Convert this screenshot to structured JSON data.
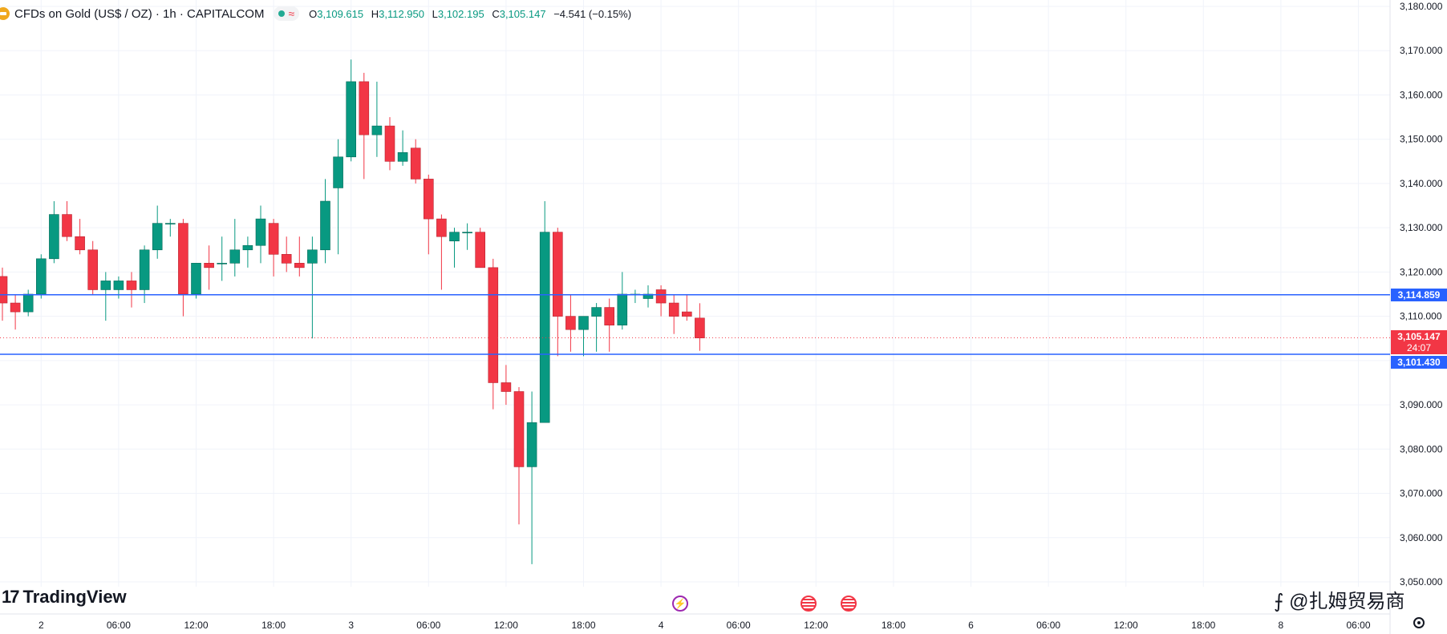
{
  "header": {
    "title": "CFDs on Gold (US$ / OZ) · 1h · CAPITALCOM",
    "ohlc": {
      "o_label": "O",
      "o": "3,109.615",
      "h_label": "H",
      "h": "3,112.950",
      "l_label": "L",
      "l": "3,102.195",
      "c_label": "C",
      "c": "3,105.147",
      "change": "−4.541 (−0.15%)"
    }
  },
  "price_tags": {
    "upper_line": "3,114.859",
    "current": "3,105.147",
    "countdown": "24:07",
    "lower_line": "3,101.430"
  },
  "branding": {
    "logo_text": "TradingView",
    "watermark": "⨍ @扎姆贸易商"
  },
  "colors": {
    "up": "#089981",
    "down": "#f23645",
    "line": "#2962ff",
    "grid": "#f0f3fa"
  },
  "chart_data": {
    "type": "candlestick",
    "interval": "1h",
    "ylim": [
      3050,
      3180
    ],
    "y_ticks": [
      3050,
      3060,
      3070,
      3080,
      3090,
      3100,
      3110,
      3120,
      3130,
      3140,
      3150,
      3160,
      3170,
      3180
    ],
    "y_tick_labels": [
      "3,050.000",
      "3,060.000",
      "3,070.000",
      "3,080.000",
      "3,090.000",
      "3,100.000",
      "3,110.000",
      "3,120.000",
      "3,130.000",
      "3,140.000",
      "3,150.000",
      "3,160.000",
      "3,170.000",
      "3,180.000"
    ],
    "x_tick_labels": [
      "2",
      "06:00",
      "12:00",
      "18:00",
      "3",
      "06:00",
      "12:00",
      "18:00",
      "4",
      "06:00",
      "12:00",
      "18:00",
      "6",
      "06:00",
      "12:00",
      "18:00",
      "8",
      "06:00"
    ],
    "horizontal_lines": [
      3114.859,
      3101.43
    ],
    "current_price": 3105.147,
    "candles": [
      {
        "o": 3119.0,
        "h": 3121.0,
        "l": 3109.0,
        "c": 3113.0
      },
      {
        "o": 3113.0,
        "h": 3115.0,
        "l": 3107.0,
        "c": 3111.0
      },
      {
        "o": 3111.0,
        "h": 3116.0,
        "l": 3110.0,
        "c": 3115.0
      },
      {
        "o": 3115.0,
        "h": 3124.0,
        "l": 3114.0,
        "c": 3123.0
      },
      {
        "o": 3123.0,
        "h": 3136.0,
        "l": 3122.0,
        "c": 3133.0
      },
      {
        "o": 3133.0,
        "h": 3136.0,
        "l": 3127.0,
        "c": 3128.0
      },
      {
        "o": 3128.0,
        "h": 3132.0,
        "l": 3124.0,
        "c": 3125.0
      },
      {
        "o": 3125.0,
        "h": 3127.0,
        "l": 3115.0,
        "c": 3116.0
      },
      {
        "o": 3116.0,
        "h": 3120.0,
        "l": 3109.0,
        "c": 3118.0
      },
      {
        "o": 3116.0,
        "h": 3119.0,
        "l": 3114.0,
        "c": 3118.0
      },
      {
        "o": 3118.0,
        "h": 3120.0,
        "l": 3112.0,
        "c": 3116.0
      },
      {
        "o": 3116.0,
        "h": 3126.0,
        "l": 3113.0,
        "c": 3125.0
      },
      {
        "o": 3125.0,
        "h": 3135.0,
        "l": 3123.0,
        "c": 3131.0
      },
      {
        "o": 3131.0,
        "h": 3132.0,
        "l": 3128.0,
        "c": 3131.0
      },
      {
        "o": 3131.0,
        "h": 3132.0,
        "l": 3110.0,
        "c": 3115.0
      },
      {
        "o": 3115.0,
        "h": 3122.0,
        "l": 3114.0,
        "c": 3122.0
      },
      {
        "o": 3122.0,
        "h": 3126.0,
        "l": 3116.0,
        "c": 3121.0
      },
      {
        "o": 3122.0,
        "h": 3128.0,
        "l": 3118.0,
        "c": 3122.0
      },
      {
        "o": 3122.0,
        "h": 3132.0,
        "l": 3119.0,
        "c": 3125.0
      },
      {
        "o": 3125.0,
        "h": 3128.0,
        "l": 3121.0,
        "c": 3126.0
      },
      {
        "o": 3126.0,
        "h": 3135.0,
        "l": 3122.0,
        "c": 3132.0
      },
      {
        "o": 3131.0,
        "h": 3132.0,
        "l": 3119.0,
        "c": 3124.0
      },
      {
        "o": 3124.0,
        "h": 3128.0,
        "l": 3120.0,
        "c": 3122.0
      },
      {
        "o": 3122.0,
        "h": 3128.0,
        "l": 3119.0,
        "c": 3121.0
      },
      {
        "o": 3122.0,
        "h": 3128.0,
        "l": 3105.0,
        "c": 3125.0
      },
      {
        "o": 3125.0,
        "h": 3141.0,
        "l": 3122.0,
        "c": 3136.0
      },
      {
        "o": 3139.0,
        "h": 3150.0,
        "l": 3124.0,
        "c": 3146.0
      },
      {
        "o": 3146.0,
        "h": 3168.0,
        "l": 3145.0,
        "c": 3163.0
      },
      {
        "o": 3163.0,
        "h": 3165.0,
        "l": 3141.0,
        "c": 3151.0
      },
      {
        "o": 3151.0,
        "h": 3163.0,
        "l": 3146.0,
        "c": 3153.0
      },
      {
        "o": 3153.0,
        "h": 3155.0,
        "l": 3143.0,
        "c": 3145.0
      },
      {
        "o": 3145.0,
        "h": 3152.0,
        "l": 3144.0,
        "c": 3147.0
      },
      {
        "o": 3148.0,
        "h": 3150.0,
        "l": 3140.0,
        "c": 3141.0
      },
      {
        "o": 3141.0,
        "h": 3142.0,
        "l": 3124.0,
        "c": 3132.0
      },
      {
        "o": 3132.0,
        "h": 3133.0,
        "l": 3116.0,
        "c": 3128.0
      },
      {
        "o": 3127.0,
        "h": 3130.0,
        "l": 3121.0,
        "c": 3129.0
      },
      {
        "o": 3129.0,
        "h": 3131.0,
        "l": 3125.0,
        "c": 3129.0
      },
      {
        "o": 3129.0,
        "h": 3130.0,
        "l": 3121.0,
        "c": 3121.0
      },
      {
        "o": 3121.0,
        "h": 3123.0,
        "l": 3089.0,
        "c": 3095.0
      },
      {
        "o": 3095.0,
        "h": 3099.0,
        "l": 3090.0,
        "c": 3093.0
      },
      {
        "o": 3093.0,
        "h": 3094.0,
        "l": 3063.0,
        "c": 3076.0
      },
      {
        "o": 3076.0,
        "h": 3093.0,
        "l": 3054.0,
        "c": 3086.0
      },
      {
        "o": 3086.0,
        "h": 3136.0,
        "l": 3086.0,
        "c": 3129.0
      },
      {
        "o": 3129.0,
        "h": 3130.0,
        "l": 3101.0,
        "c": 3110.0
      },
      {
        "o": 3110.0,
        "h": 3115.0,
        "l": 3102.0,
        "c": 3107.0
      },
      {
        "o": 3107.0,
        "h": 3110.0,
        "l": 3101.0,
        "c": 3110.0
      },
      {
        "o": 3110.0,
        "h": 3113.0,
        "l": 3102.0,
        "c": 3112.0
      },
      {
        "o": 3112.0,
        "h": 3114.0,
        "l": 3102.0,
        "c": 3108.0
      },
      {
        "o": 3108.0,
        "h": 3120.0,
        "l": 3107.0,
        "c": 3115.0
      },
      {
        "o": 3115.0,
        "h": 3116.0,
        "l": 3113.0,
        "c": 3115.0
      },
      {
        "o": 3114.0,
        "h": 3117.0,
        "l": 3112.0,
        "c": 3115.0
      },
      {
        "o": 3116.0,
        "h": 3117.0,
        "l": 3110.0,
        "c": 3113.0
      },
      {
        "o": 3113.0,
        "h": 3115.0,
        "l": 3106.0,
        "c": 3110.0
      },
      {
        "o": 3111.0,
        "h": 3115.0,
        "l": 3109.0,
        "c": 3110.0
      },
      {
        "o": 3109.6,
        "h": 3112.95,
        "l": 3102.2,
        "c": 3105.1
      }
    ]
  }
}
